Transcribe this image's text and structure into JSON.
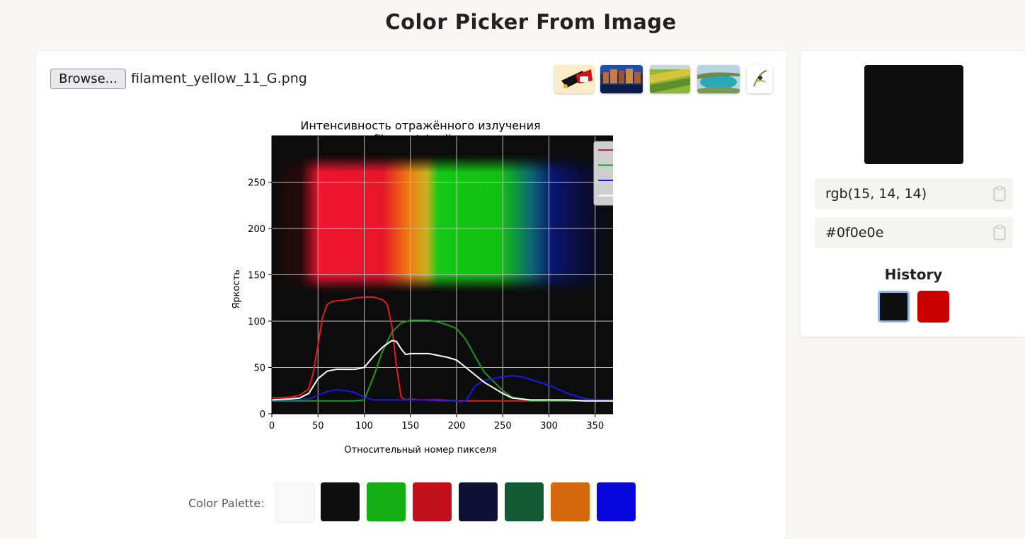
{
  "page_title": "Color Picker From Image",
  "file_input": {
    "button_label": "Browse...",
    "file_name": "filament_yellow_11_G.png"
  },
  "sample_images": [
    {
      "name": "abstract-art-thumbnail"
    },
    {
      "name": "city-night-thumbnail"
    },
    {
      "name": "fields-aerial-thumbnail"
    },
    {
      "name": "coast-bay-thumbnail"
    },
    {
      "name": "bird-sketch-thumbnail"
    }
  ],
  "chart_data": {
    "type": "line",
    "title": "Интенсивность отражённого излучения",
    "subtitle": "filament / yellow",
    "xlabel": "Относительный номер пикселя",
    "ylabel": "Яркость",
    "xlim": [
      0,
      400
    ],
    "ylim": [
      0,
      300
    ],
    "xticks": [
      0,
      50,
      100,
      150,
      200,
      250,
      300,
      350
    ],
    "yticks": [
      0,
      50,
      100,
      150,
      200,
      250
    ],
    "grid": true,
    "legend_position": "top-right",
    "background": "spectrum image",
    "series": [
      {
        "name": "r",
        "color": "#e41a1c",
        "x": [
          0,
          20,
          30,
          40,
          45,
          50,
          55,
          60,
          65,
          70,
          80,
          90,
          100,
          110,
          120,
          125,
          130,
          135,
          140,
          145,
          150,
          160,
          180,
          200,
          220,
          240,
          260,
          280,
          300,
          320,
          340,
          360,
          380,
          400
        ],
        "y": [
          17,
          18,
          20,
          27,
          45,
          75,
          105,
          118,
          121,
          122,
          123,
          125,
          126,
          126,
          123,
          118,
          95,
          50,
          18,
          15,
          16,
          15,
          15,
          14,
          14,
          14,
          14,
          14,
          14,
          14,
          14,
          14,
          14,
          14
        ]
      },
      {
        "name": "g",
        "color": "#1a9c1a",
        "x": [
          0,
          20,
          40,
          50,
          60,
          70,
          80,
          90,
          100,
          110,
          120,
          130,
          140,
          150,
          160,
          170,
          180,
          190,
          200,
          210,
          220,
          230,
          240,
          250,
          260,
          280,
          300,
          320,
          340,
          360,
          380,
          400
        ],
        "y": [
          14,
          14,
          14,
          14,
          14,
          14,
          14,
          14,
          15,
          40,
          68,
          88,
          98,
          101,
          101,
          101,
          99,
          96,
          92,
          80,
          62,
          45,
          35,
          25,
          18,
          14,
          14,
          14,
          14,
          14,
          14,
          14
        ]
      },
      {
        "name": "b",
        "color": "#1a1ae6",
        "x": [
          0,
          20,
          40,
          50,
          60,
          70,
          80,
          90,
          100,
          110,
          120,
          140,
          160,
          180,
          200,
          205,
          210,
          220,
          230,
          240,
          250,
          260,
          270,
          280,
          290,
          300,
          320,
          340,
          360,
          380,
          400
        ],
        "y": [
          15,
          15,
          16,
          20,
          24,
          26,
          25,
          23,
          18,
          15,
          15,
          15,
          15,
          14,
          14,
          13,
          14,
          30,
          36,
          38,
          40,
          41,
          40,
          37,
          34,
          31,
          22,
          16,
          15,
          15,
          15
        ]
      },
      {
        "name": "l",
        "color": "#ffffff",
        "x": [
          0,
          20,
          30,
          40,
          50,
          60,
          70,
          80,
          90,
          100,
          110,
          120,
          130,
          135,
          140,
          145,
          150,
          160,
          170,
          180,
          190,
          200,
          210,
          220,
          230,
          240,
          250,
          260,
          270,
          280,
          300,
          320,
          340,
          360,
          380,
          400
        ],
        "y": [
          15,
          16,
          17,
          22,
          38,
          46,
          48,
          48,
          48,
          50,
          62,
          72,
          79,
          78,
          70,
          64,
          65,
          65,
          65,
          63,
          61,
          58,
          50,
          42,
          34,
          28,
          22,
          17,
          16,
          15,
          15,
          15,
          14,
          14,
          14,
          14
        ]
      }
    ]
  },
  "palette": {
    "label": "Color Palette:",
    "colors": [
      "#f8f8f8",
      "#0f0f0f",
      "#14ad14",
      "#c2101b",
      "#0e1133",
      "#145a32",
      "#d4690f",
      "#0606dd"
    ]
  },
  "picked": {
    "preview_color": "#0f0e0e",
    "rgb": "rgb(15, 14, 14)",
    "hex": "#0f0e0e"
  },
  "history": {
    "title": "History",
    "colors": [
      "#0f0f0f",
      "#c80000"
    ],
    "selected_index": 0
  }
}
